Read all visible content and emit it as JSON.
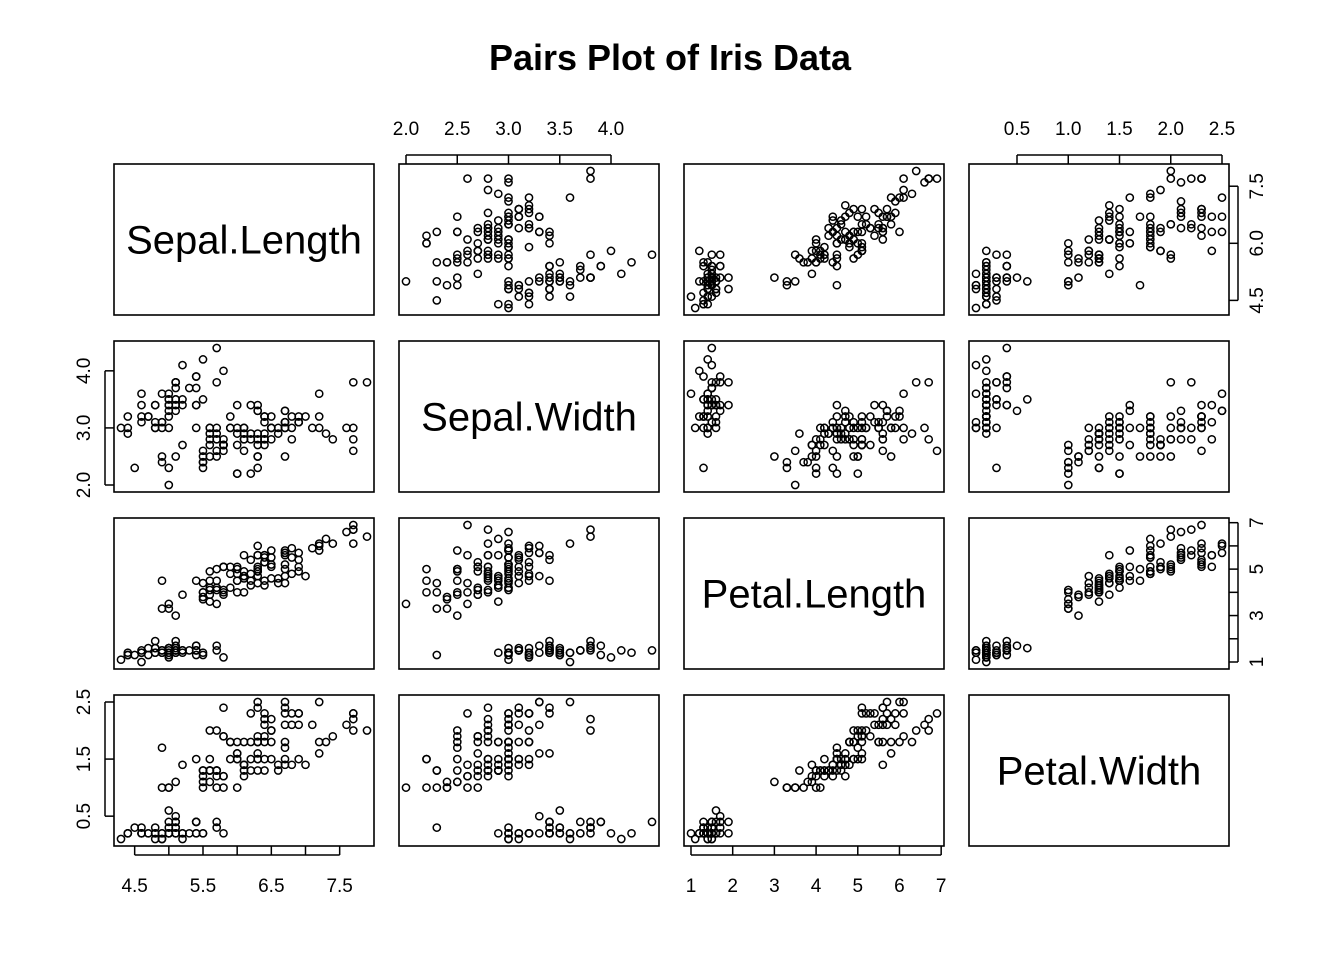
{
  "chart_data": {
    "type": "scatter",
    "subtype": "pairs",
    "title": "Pairs Plot of Iris Data",
    "variables": [
      "Sepal.Length",
      "Sepal.Width",
      "Petal.Length",
      "Petal.Width"
    ],
    "ranges": [
      [
        4.3,
        7.9
      ],
      [
        2.0,
        4.4
      ],
      [
        1.0,
        6.9
      ],
      [
        0.1,
        2.5
      ]
    ],
    "axes": {
      "top": [
        {
          "col": 1,
          "ticks": [
            "2.0",
            "2.5",
            "3.0",
            "3.5",
            "4.0"
          ]
        },
        {
          "col": 3,
          "ticks": [
            "0.5",
            "1.0",
            "1.5",
            "2.0",
            "2.5"
          ]
        }
      ],
      "bottom": [
        {
          "col": 0,
          "ticks": [
            "4.5",
            "5.5",
            "6.5",
            "7.5"
          ]
        },
        {
          "col": 2,
          "ticks": [
            "1",
            "2",
            "3",
            "4",
            "5",
            "6",
            "7"
          ]
        }
      ],
      "left": [
        {
          "row": 1,
          "ticks": [
            "2.0",
            "3.0",
            "4.0"
          ]
        },
        {
          "row": 3,
          "ticks": [
            "0.5",
            "1.5",
            "2.5"
          ]
        }
      ],
      "right": [
        {
          "row": 0,
          "ticks": [
            "4.5",
            "6.0",
            "7.5"
          ]
        },
        {
          "row": 2,
          "ticks": [
            "1",
            "3",
            "5",
            "7"
          ]
        }
      ]
    },
    "minor_ticks": {
      "right_row2": [
        2,
        4,
        6
      ],
      "bottom_col0": [
        5.0,
        6.0,
        7.0
      ]
    },
    "grid": false,
    "legend": "none",
    "point_symbol": "open-circle",
    "points": [
      [
        5.1,
        3.5,
        1.4,
        0.2
      ],
      [
        4.9,
        3.0,
        1.4,
        0.2
      ],
      [
        4.7,
        3.2,
        1.3,
        0.2
      ],
      [
        4.6,
        3.1,
        1.5,
        0.2
      ],
      [
        5.0,
        3.6,
        1.4,
        0.2
      ],
      [
        5.4,
        3.9,
        1.7,
        0.4
      ],
      [
        4.6,
        3.4,
        1.4,
        0.3
      ],
      [
        5.0,
        3.4,
        1.5,
        0.2
      ],
      [
        4.4,
        2.9,
        1.4,
        0.2
      ],
      [
        4.9,
        3.1,
        1.5,
        0.1
      ],
      [
        5.4,
        3.7,
        1.5,
        0.2
      ],
      [
        4.8,
        3.4,
        1.6,
        0.2
      ],
      [
        4.8,
        3.0,
        1.4,
        0.1
      ],
      [
        4.3,
        3.0,
        1.1,
        0.1
      ],
      [
        5.8,
        4.0,
        1.2,
        0.2
      ],
      [
        5.7,
        4.4,
        1.5,
        0.4
      ],
      [
        5.4,
        3.9,
        1.3,
        0.4
      ],
      [
        5.1,
        3.5,
        1.4,
        0.3
      ],
      [
        5.7,
        3.8,
        1.7,
        0.3
      ],
      [
        5.1,
        3.8,
        1.5,
        0.3
      ],
      [
        5.4,
        3.4,
        1.7,
        0.2
      ],
      [
        5.1,
        3.7,
        1.5,
        0.4
      ],
      [
        4.6,
        3.6,
        1.0,
        0.2
      ],
      [
        5.1,
        3.3,
        1.7,
        0.5
      ],
      [
        4.8,
        3.4,
        1.9,
        0.2
      ],
      [
        5.0,
        3.0,
        1.6,
        0.2
      ],
      [
        5.0,
        3.4,
        1.6,
        0.4
      ],
      [
        5.2,
        3.5,
        1.5,
        0.2
      ],
      [
        5.2,
        3.4,
        1.4,
        0.2
      ],
      [
        4.7,
        3.2,
        1.6,
        0.2
      ],
      [
        4.8,
        3.1,
        1.6,
        0.2
      ],
      [
        5.4,
        3.4,
        1.5,
        0.4
      ],
      [
        5.2,
        4.1,
        1.5,
        0.1
      ],
      [
        5.5,
        4.2,
        1.4,
        0.2
      ],
      [
        4.9,
        3.1,
        1.5,
        0.2
      ],
      [
        5.0,
        3.2,
        1.2,
        0.2
      ],
      [
        5.5,
        3.5,
        1.3,
        0.2
      ],
      [
        4.9,
        3.6,
        1.4,
        0.1
      ],
      [
        4.4,
        3.0,
        1.3,
        0.2
      ],
      [
        5.1,
        3.4,
        1.5,
        0.2
      ],
      [
        5.0,
        3.5,
        1.3,
        0.3
      ],
      [
        4.5,
        2.3,
        1.3,
        0.3
      ],
      [
        4.4,
        3.2,
        1.3,
        0.2
      ],
      [
        5.0,
        3.5,
        1.6,
        0.6
      ],
      [
        5.1,
        3.8,
        1.9,
        0.4
      ],
      [
        4.8,
        3.0,
        1.4,
        0.3
      ],
      [
        5.1,
        3.8,
        1.6,
        0.2
      ],
      [
        4.6,
        3.2,
        1.4,
        0.2
      ],
      [
        5.3,
        3.7,
        1.5,
        0.2
      ],
      [
        5.0,
        3.3,
        1.4,
        0.2
      ],
      [
        7.0,
        3.2,
        4.7,
        1.4
      ],
      [
        6.4,
        3.2,
        4.5,
        1.5
      ],
      [
        6.9,
        3.1,
        4.9,
        1.5
      ],
      [
        5.5,
        2.3,
        4.0,
        1.3
      ],
      [
        6.5,
        2.8,
        4.6,
        1.5
      ],
      [
        5.7,
        2.8,
        4.5,
        1.3
      ],
      [
        6.3,
        3.3,
        4.7,
        1.6
      ],
      [
        4.9,
        2.4,
        3.3,
        1.0
      ],
      [
        6.6,
        2.9,
        4.6,
        1.3
      ],
      [
        5.2,
        2.7,
        3.9,
        1.4
      ],
      [
        5.0,
        2.0,
        3.5,
        1.0
      ],
      [
        5.9,
        3.0,
        4.2,
        1.5
      ],
      [
        6.0,
        2.2,
        4.0,
        1.0
      ],
      [
        6.1,
        2.9,
        4.7,
        1.4
      ],
      [
        5.6,
        2.9,
        3.6,
        1.3
      ],
      [
        6.7,
        3.1,
        4.4,
        1.4
      ],
      [
        5.6,
        3.0,
        4.5,
        1.5
      ],
      [
        5.8,
        2.7,
        4.1,
        1.0
      ],
      [
        6.2,
        2.2,
        4.5,
        1.5
      ],
      [
        5.6,
        2.5,
        3.9,
        1.1
      ],
      [
        5.9,
        3.2,
        4.8,
        1.8
      ],
      [
        6.1,
        2.8,
        4.0,
        1.3
      ],
      [
        6.3,
        2.5,
        4.9,
        1.5
      ],
      [
        6.1,
        2.8,
        4.7,
        1.2
      ],
      [
        6.4,
        2.9,
        4.3,
        1.3
      ],
      [
        6.6,
        3.0,
        4.4,
        1.4
      ],
      [
        6.8,
        2.8,
        4.8,
        1.4
      ],
      [
        6.7,
        3.0,
        5.0,
        1.7
      ],
      [
        6.0,
        2.9,
        4.5,
        1.5
      ],
      [
        5.7,
        2.6,
        3.5,
        1.0
      ],
      [
        5.5,
        2.4,
        3.8,
        1.1
      ],
      [
        5.5,
        2.4,
        3.7,
        1.0
      ],
      [
        5.8,
        2.7,
        3.9,
        1.2
      ],
      [
        6.0,
        2.7,
        5.1,
        1.6
      ],
      [
        5.4,
        3.0,
        4.5,
        1.5
      ],
      [
        6.0,
        3.4,
        4.5,
        1.6
      ],
      [
        6.7,
        3.1,
        4.7,
        1.5
      ],
      [
        6.3,
        2.3,
        4.4,
        1.3
      ],
      [
        5.6,
        3.0,
        4.1,
        1.3
      ],
      [
        5.5,
        2.5,
        4.0,
        1.3
      ],
      [
        5.5,
        2.6,
        4.4,
        1.2
      ],
      [
        6.1,
        3.0,
        4.6,
        1.4
      ],
      [
        5.8,
        2.6,
        4.0,
        1.2
      ],
      [
        5.0,
        2.3,
        3.3,
        1.0
      ],
      [
        5.6,
        2.7,
        4.2,
        1.3
      ],
      [
        5.7,
        3.0,
        4.2,
        1.2
      ],
      [
        5.7,
        2.9,
        4.2,
        1.3
      ],
      [
        6.2,
        2.9,
        4.3,
        1.3
      ],
      [
        5.1,
        2.5,
        3.0,
        1.1
      ],
      [
        5.7,
        2.8,
        4.1,
        1.3
      ],
      [
        6.3,
        3.3,
        6.0,
        2.5
      ],
      [
        5.8,
        2.7,
        5.1,
        1.9
      ],
      [
        7.1,
        3.0,
        5.9,
        2.1
      ],
      [
        6.3,
        2.9,
        5.6,
        1.8
      ],
      [
        6.5,
        3.0,
        5.8,
        2.2
      ],
      [
        7.6,
        3.0,
        6.6,
        2.1
      ],
      [
        4.9,
        2.5,
        4.5,
        1.7
      ],
      [
        7.3,
        2.9,
        6.3,
        1.8
      ],
      [
        6.7,
        2.5,
        5.8,
        1.8
      ],
      [
        7.2,
        3.6,
        6.1,
        2.5
      ],
      [
        6.5,
        3.2,
        5.1,
        2.0
      ],
      [
        6.4,
        2.7,
        5.3,
        1.9
      ],
      [
        6.8,
        3.0,
        5.5,
        2.1
      ],
      [
        5.7,
        2.5,
        5.0,
        2.0
      ],
      [
        5.8,
        2.8,
        5.1,
        2.4
      ],
      [
        6.4,
        3.2,
        5.3,
        2.3
      ],
      [
        6.5,
        3.0,
        5.5,
        1.8
      ],
      [
        7.7,
        3.8,
        6.7,
        2.2
      ],
      [
        7.7,
        2.6,
        6.9,
        2.3
      ],
      [
        6.0,
        2.2,
        5.0,
        1.5
      ],
      [
        6.9,
        3.2,
        5.7,
        2.3
      ],
      [
        5.6,
        2.8,
        4.9,
        2.0
      ],
      [
        7.7,
        2.8,
        6.7,
        2.0
      ],
      [
        6.3,
        2.7,
        4.9,
        1.8
      ],
      [
        6.7,
        3.3,
        5.7,
        2.1
      ],
      [
        7.2,
        3.2,
        6.0,
        1.8
      ],
      [
        6.2,
        2.8,
        4.8,
        1.8
      ],
      [
        6.1,
        3.0,
        4.9,
        1.8
      ],
      [
        6.4,
        2.8,
        5.6,
        2.1
      ],
      [
        7.2,
        3.0,
        5.8,
        1.6
      ],
      [
        7.4,
        2.8,
        6.1,
        1.9
      ],
      [
        7.9,
        3.8,
        6.4,
        2.0
      ],
      [
        6.4,
        2.8,
        5.6,
        2.2
      ],
      [
        6.3,
        2.8,
        5.1,
        1.5
      ],
      [
        6.1,
        2.6,
        5.6,
        1.4
      ],
      [
        7.7,
        3.0,
        6.1,
        2.3
      ],
      [
        6.3,
        3.4,
        5.6,
        2.4
      ],
      [
        6.4,
        3.1,
        5.5,
        1.8
      ],
      [
        6.0,
        3.0,
        4.8,
        1.8
      ],
      [
        6.9,
        3.1,
        5.4,
        2.1
      ],
      [
        6.7,
        3.1,
        5.6,
        2.4
      ],
      [
        6.9,
        3.1,
        5.1,
        2.3
      ],
      [
        5.8,
        2.7,
        5.1,
        1.9
      ],
      [
        6.8,
        3.2,
        5.9,
        2.3
      ],
      [
        6.7,
        3.3,
        5.7,
        2.5
      ],
      [
        6.7,
        3.0,
        5.2,
        2.3
      ],
      [
        6.3,
        2.5,
        5.0,
        1.9
      ],
      [
        6.5,
        3.0,
        5.2,
        2.0
      ],
      [
        6.2,
        3.4,
        5.4,
        2.3
      ],
      [
        5.9,
        3.0,
        5.1,
        1.8
      ]
    ]
  }
}
